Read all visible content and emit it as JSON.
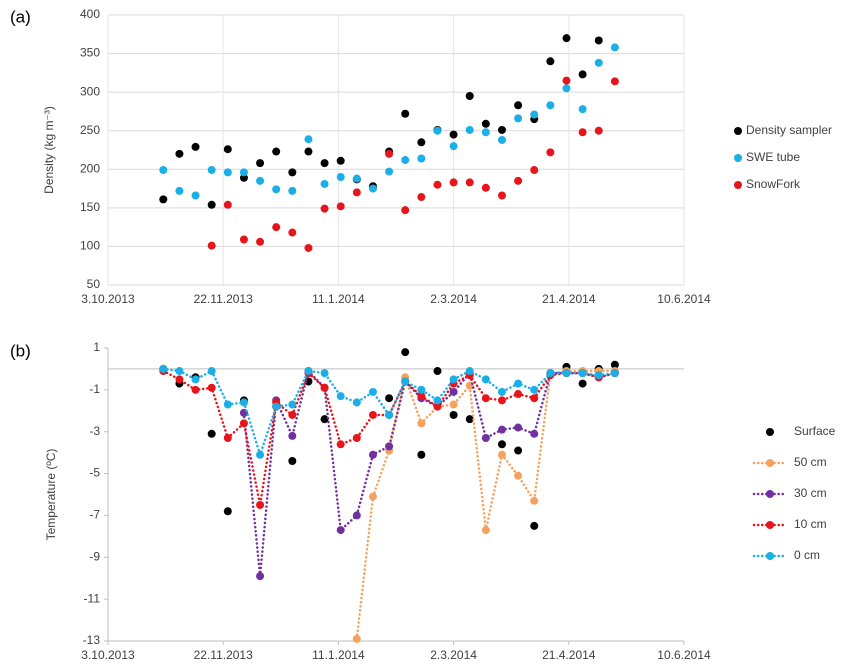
{
  "chart_data": [
    {
      "type": "scatter",
      "panel_label": "(a)",
      "y_label": "Density (kg m⁻³)",
      "xlim": [
        "2013-10-03",
        "2014-06-10"
      ],
      "xticks": [
        {
          "value": "2013-10-03",
          "label": "3.10.2013"
        },
        {
          "value": "2013-11-22",
          "label": "22.11.2013"
        },
        {
          "value": "2014-01-11",
          "label": "11.1.2014"
        },
        {
          "value": "2014-03-02",
          "label": "2.3.2014"
        },
        {
          "value": "2014-04-21",
          "label": "21.4.2014"
        },
        {
          "value": "2014-06-10",
          "label": "10.6.2014"
        }
      ],
      "ylim": [
        50,
        400
      ],
      "yticks": [
        50,
        100,
        150,
        200,
        250,
        300,
        350,
        400
      ],
      "grid": true,
      "legend": "right",
      "series": [
        {
          "name": "Density sampler",
          "color": "#000000",
          "x": [
            "2013-10-27",
            "2013-11-03",
            "2013-11-10",
            "2013-11-17",
            "2013-11-24",
            "2013-12-01",
            "2013-12-08",
            "2013-12-15",
            "2013-12-22",
            "2013-12-29",
            "2014-01-05",
            "2014-01-12",
            "2014-01-19",
            "2014-01-26",
            "2014-02-02",
            "2014-02-09",
            "2014-02-16",
            "2014-02-23",
            "2014-03-02",
            "2014-03-09",
            "2014-03-16",
            "2014-03-23",
            "2014-03-30",
            "2014-04-06",
            "2014-04-13",
            "2014-04-20",
            "2014-04-27",
            "2014-05-04"
          ],
          "values": [
            161,
            220,
            229,
            154,
            226,
            189,
            208,
            223,
            196,
            223,
            208,
            211,
            187,
            178,
            223,
            272,
            235,
            251,
            245,
            295,
            259,
            251,
            283,
            265,
            340,
            370,
            323,
            367
          ]
        },
        {
          "name": "SWE tube",
          "color": "#1aafe6",
          "x": [
            "2013-10-27",
            "2013-11-03",
            "2013-11-10",
            "2013-11-17",
            "2013-11-24",
            "2013-12-01",
            "2013-12-08",
            "2013-12-15",
            "2013-12-22",
            "2013-12-29",
            "2014-01-05",
            "2014-01-12",
            "2014-01-19",
            "2014-01-26",
            "2014-02-02",
            "2014-02-09",
            "2014-02-16",
            "2014-02-23",
            "2014-03-02",
            "2014-03-09",
            "2014-03-16",
            "2014-03-23",
            "2014-03-30",
            "2014-04-06",
            "2014-04-13",
            "2014-04-20",
            "2014-04-27",
            "2014-05-04",
            "2014-05-11"
          ],
          "values": [
            199,
            172,
            166,
            199,
            196,
            196,
            185,
            174,
            172,
            239,
            181,
            190,
            188,
            175,
            197,
            212,
            214,
            250,
            230,
            251,
            248,
            238,
            266,
            271,
            283,
            305,
            278,
            338,
            358
          ]
        },
        {
          "name": "SnowFork",
          "color": "#e8141b",
          "x": [
            "2013-11-17",
            "2013-11-24",
            "2013-12-01",
            "2013-12-08",
            "2013-12-15",
            "2013-12-22",
            "2013-12-29",
            "2014-01-05",
            "2014-01-12",
            "2014-01-19",
            "2014-02-02",
            "2014-02-09",
            "2014-02-16",
            "2014-02-23",
            "2014-03-02",
            "2014-03-09",
            "2014-03-16",
            "2014-03-23",
            "2014-03-30",
            "2014-04-06",
            "2014-04-13",
            "2014-04-20",
            "2014-04-27",
            "2014-05-04",
            "2014-05-11"
          ],
          "values": [
            101,
            154,
            109,
            106,
            125,
            118,
            98,
            149,
            152,
            170,
            220,
            147,
            164,
            180,
            183,
            183,
            176,
            166,
            185,
            199,
            222,
            315,
            248,
            250,
            314
          ]
        }
      ]
    },
    {
      "type": "line",
      "panel_label": "(b)",
      "y_label": "Temperature (ºC)",
      "xlim": [
        "2013-10-03",
        "2014-06-10"
      ],
      "xticks": [
        {
          "value": "2013-10-03",
          "label": "3.10.2013"
        },
        {
          "value": "2013-11-22",
          "label": "22.11.2013"
        },
        {
          "value": "2014-01-11",
          "label": "11.1.2014"
        },
        {
          "value": "2014-03-02",
          "label": "2.3.2014"
        },
        {
          "value": "2014-04-21",
          "label": "21.4.2014"
        },
        {
          "value": "2014-06-10",
          "label": "10.6.2014"
        }
      ],
      "ylim": [
        -13,
        1
      ],
      "yticks": [
        1,
        -1,
        -3,
        -5,
        -7,
        -9,
        -11,
        -13
      ],
      "grid": false,
      "legend": "right",
      "line_style": "dotted",
      "x": [
        "2013-10-27",
        "2013-11-03",
        "2013-11-10",
        "2013-11-17",
        "2013-11-24",
        "2013-12-01",
        "2013-12-08",
        "2013-12-15",
        "2013-12-22",
        "2013-12-29",
        "2014-01-05",
        "2014-01-12",
        "2014-01-19",
        "2014-01-26",
        "2014-02-02",
        "2014-02-09",
        "2014-02-16",
        "2014-02-23",
        "2014-03-02",
        "2014-03-09",
        "2014-03-16",
        "2014-03-23",
        "2014-03-30",
        "2014-04-06",
        "2014-04-13",
        "2014-04-20",
        "2014-04-27",
        "2014-05-04",
        "2014-05-11"
      ],
      "series": [
        {
          "name": "Surface",
          "type": "scatter",
          "color": "#000000",
          "values": [
            0,
            -0.7,
            -0.4,
            -3.1,
            -6.8,
            -1.5,
            null,
            -1.8,
            -4.4,
            -0.6,
            -2.4,
            null,
            null,
            null,
            -1.4,
            0.8,
            -4.1,
            -0.1,
            -2.2,
            -2.4,
            null,
            -3.6,
            -3.9,
            -7.5,
            null,
            0.1,
            -0.7,
            0,
            0.2
          ]
        },
        {
          "name": "50 cm",
          "type": "line",
          "color": "#f4a25c",
          "values": [
            null,
            null,
            null,
            null,
            null,
            null,
            null,
            null,
            null,
            null,
            null,
            null,
            -12.9,
            -6.1,
            -3.9,
            -0.4,
            -2.6,
            -1.8,
            -1.7,
            -0.8,
            -7.7,
            -4.1,
            -5.1,
            -6.3,
            -0.2,
            -0.1,
            -0.1,
            -0.1,
            -0.1
          ]
        },
        {
          "name": "30 cm",
          "type": "line",
          "color": "#7030a0",
          "values": [
            null,
            null,
            null,
            null,
            null,
            -2.1,
            -9.9,
            -1.5,
            -3.2,
            -0.1,
            -0.9,
            -7.7,
            -7.0,
            -4.1,
            -3.7,
            -0.6,
            -1.4,
            -1.8,
            -1.1,
            -0.2,
            -3.3,
            -2.9,
            -2.8,
            -3.1,
            -0.2,
            -0.2,
            -0.2,
            -0.4,
            -0.2
          ]
        },
        {
          "name": "10 cm",
          "type": "line",
          "color": "#e8141b",
          "values": [
            -0.1,
            -0.5,
            -1.0,
            -0.9,
            -3.3,
            -2.6,
            -6.5,
            -1.6,
            -2.2,
            -0.2,
            -0.9,
            -3.6,
            -3.3,
            -2.2,
            -2.2,
            -0.6,
            -1.3,
            -1.8,
            -0.7,
            -0.3,
            -1.4,
            -1.5,
            -1.2,
            -1.4,
            -0.3,
            -0.2,
            -0.2,
            -0.4,
            -0.2
          ]
        },
        {
          "name": "0 cm",
          "type": "line",
          "color": "#1aafe6",
          "values": [
            0,
            -0.1,
            -0.5,
            -0.1,
            -1.7,
            -1.6,
            -4.1,
            -1.8,
            -1.7,
            -0.1,
            -0.2,
            -1.3,
            -1.6,
            -1.1,
            -2.2,
            -0.6,
            -1.0,
            -1.5,
            -0.5,
            -0.1,
            -0.5,
            -1.1,
            -0.7,
            -1.0,
            -0.2,
            -0.2,
            -0.2,
            -0.3,
            -0.2
          ]
        }
      ]
    }
  ]
}
